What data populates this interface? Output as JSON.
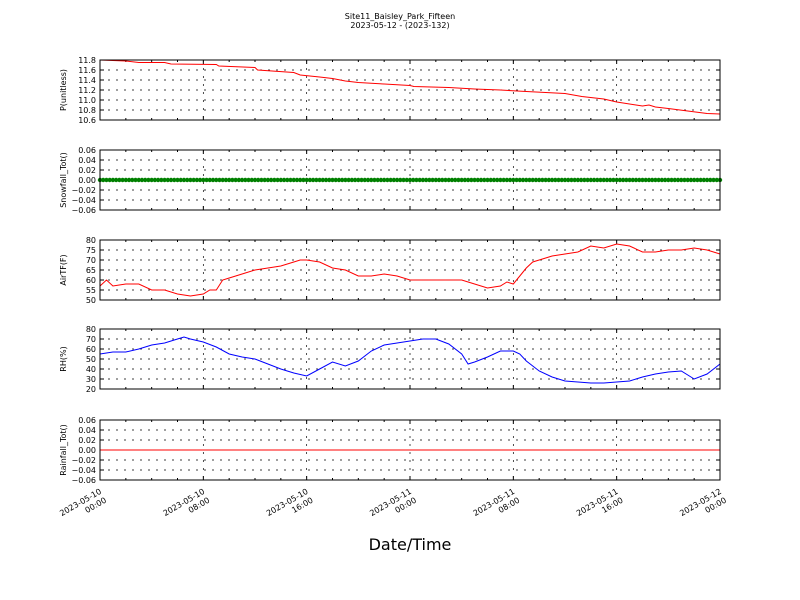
{
  "figure": {
    "title_line1": "Site11_Baisley_Park_Fifteen",
    "title_line2": "2023-05-12 - (2023-132)",
    "xlabel": "Date/Time"
  },
  "chart_data": {
    "type": "line",
    "x_domain": [
      "2023-05-10 00:00",
      "2023-05-12 00:00"
    ],
    "x_ticks": [
      {
        "line1": "2023-05-10",
        "line2": "00:00",
        "hours": 0
      },
      {
        "line1": "2023-05-10",
        "line2": "08:00",
        "hours": 8
      },
      {
        "line1": "2023-05-10",
        "line2": "16:00",
        "hours": 16
      },
      {
        "line1": "2023-05-11",
        "line2": "00:00",
        "hours": 24
      },
      {
        "line1": "2023-05-11",
        "line2": "08:00",
        "hours": 32
      },
      {
        "line1": "2023-05-11",
        "line2": "16:00",
        "hours": 40
      },
      {
        "line1": "2023-05-12",
        "line2": "00:00",
        "hours": 48
      }
    ],
    "grid": true,
    "panels": [
      {
        "ylabel": "P(unitless)",
        "ylim": [
          10.6,
          11.8
        ],
        "yticks": [
          "11.8",
          "11.6",
          "11.4",
          "11.2",
          "11.0",
          "10.8",
          "10.6"
        ],
        "series": [
          {
            "color": "#ff0000",
            "style": "line",
            "x_hours": [
              0,
              2,
              3,
              5,
              5.5,
              9,
              9.2,
              12,
              12.2,
              15,
              15.5,
              17,
              18,
              19,
              20,
              22,
              24,
              24.3,
              27,
              29,
              31,
              33,
              36,
              37.3,
              39,
              40,
              41.5,
              42,
              42.5,
              43,
              44,
              45.5,
              47,
              48
            ],
            "values": [
              11.8,
              11.78,
              11.75,
              11.75,
              11.72,
              11.71,
              11.68,
              11.65,
              11.6,
              11.55,
              11.5,
              11.46,
              11.43,
              11.38,
              11.35,
              11.32,
              11.29,
              11.27,
              11.25,
              11.22,
              11.2,
              11.17,
              11.13,
              11.07,
              11.02,
              10.96,
              10.9,
              10.88,
              10.9,
              10.86,
              10.83,
              10.78,
              10.73,
              10.72
            ]
          }
        ]
      },
      {
        "ylabel": "Snowfall_Tot()",
        "ylim": [
          -0.06,
          0.06
        ],
        "yticks": [
          "0.06",
          "0.04",
          "0.02",
          "0.00",
          "−0.02",
          "−0.04",
          "−0.06"
        ],
        "series": [
          {
            "color": "#008000",
            "style": "markers",
            "x_hours": [
              0,
              48
            ],
            "values": [
              0,
              0
            ]
          }
        ]
      },
      {
        "ylabel": "AirTF(F)",
        "ylim": [
          50,
          80
        ],
        "yticks": [
          "80",
          "75",
          "70",
          "65",
          "60",
          "55",
          "50"
        ],
        "series": [
          {
            "color": "#ff0000",
            "style": "line",
            "x_hours": [
              0,
              0.5,
              1,
              2,
              3,
              4,
              5,
              6,
              7,
              8,
              8.5,
              9,
              9.5,
              10,
              11,
              12,
              13,
              14,
              15,
              15.5,
              16,
              17,
              18,
              19,
              20,
              21,
              22,
              23,
              24,
              25,
              26,
              27,
              28,
              29,
              30,
              31,
              31.5,
              32,
              33,
              33.5,
              34,
              35,
              36,
              37,
              38,
              39,
              40,
              41,
              42,
              43,
              44,
              45,
              46,
              47,
              48
            ],
            "values": [
              57,
              60,
              57,
              58,
              58,
              55,
              55,
              53,
              52,
              53,
              55,
              55,
              60,
              61,
              63,
              65,
              66,
              67,
              69,
              70,
              70,
              69,
              66,
              65,
              62,
              62,
              63,
              62,
              60,
              60,
              60,
              60,
              60,
              58,
              56,
              57,
              59,
              58,
              66,
              69,
              70,
              72,
              73,
              74,
              77,
              76,
              78,
              77,
              74,
              74,
              75,
              75,
              76,
              75,
              73
            ]
          }
        ]
      },
      {
        "ylabel": "RH(%)",
        "ylim": [
          20,
          80
        ],
        "yticks": [
          "80",
          "70",
          "60",
          "50",
          "40",
          "30",
          "20"
        ],
        "series": [
          {
            "color": "#0000ff",
            "style": "line",
            "x_hours": [
              0,
              1,
              2,
              3,
              4,
              5,
              6,
              6.5,
              7,
              8,
              9,
              10,
              11,
              12,
              13,
              14,
              15,
              16,
              17,
              18,
              19,
              20,
              21,
              22,
              23,
              24,
              25,
              26,
              27,
              28,
              28.5,
              29,
              30,
              31,
              32,
              32.5,
              33,
              34,
              35,
              36,
              37,
              38,
              39,
              40,
              41,
              42,
              43,
              44,
              45,
              46,
              47,
              48
            ],
            "values": [
              55,
              57,
              57,
              60,
              64,
              66,
              70,
              72,
              70,
              67,
              62,
              55,
              52,
              50,
              45,
              40,
              36,
              33,
              40,
              47,
              43,
              48,
              58,
              64,
              66,
              68,
              70,
              70,
              65,
              55,
              45,
              47,
              52,
              58,
              58,
              55,
              48,
              38,
              32,
              28,
              27,
              26,
              26,
              27,
              28,
              32,
              35,
              37,
              38,
              30,
              35,
              45
            ]
          }
        ]
      },
      {
        "ylabel": "Rainfall_Tot()",
        "ylim": [
          -0.06,
          0.06
        ],
        "yticks": [
          "0.06",
          "0.04",
          "0.02",
          "0.00",
          "−0.02",
          "−0.04",
          "−0.06"
        ],
        "series": [
          {
            "color": "#ff0000",
            "style": "line",
            "x_hours": [
              0,
              48
            ],
            "values": [
              0,
              0
            ]
          }
        ]
      }
    ]
  }
}
